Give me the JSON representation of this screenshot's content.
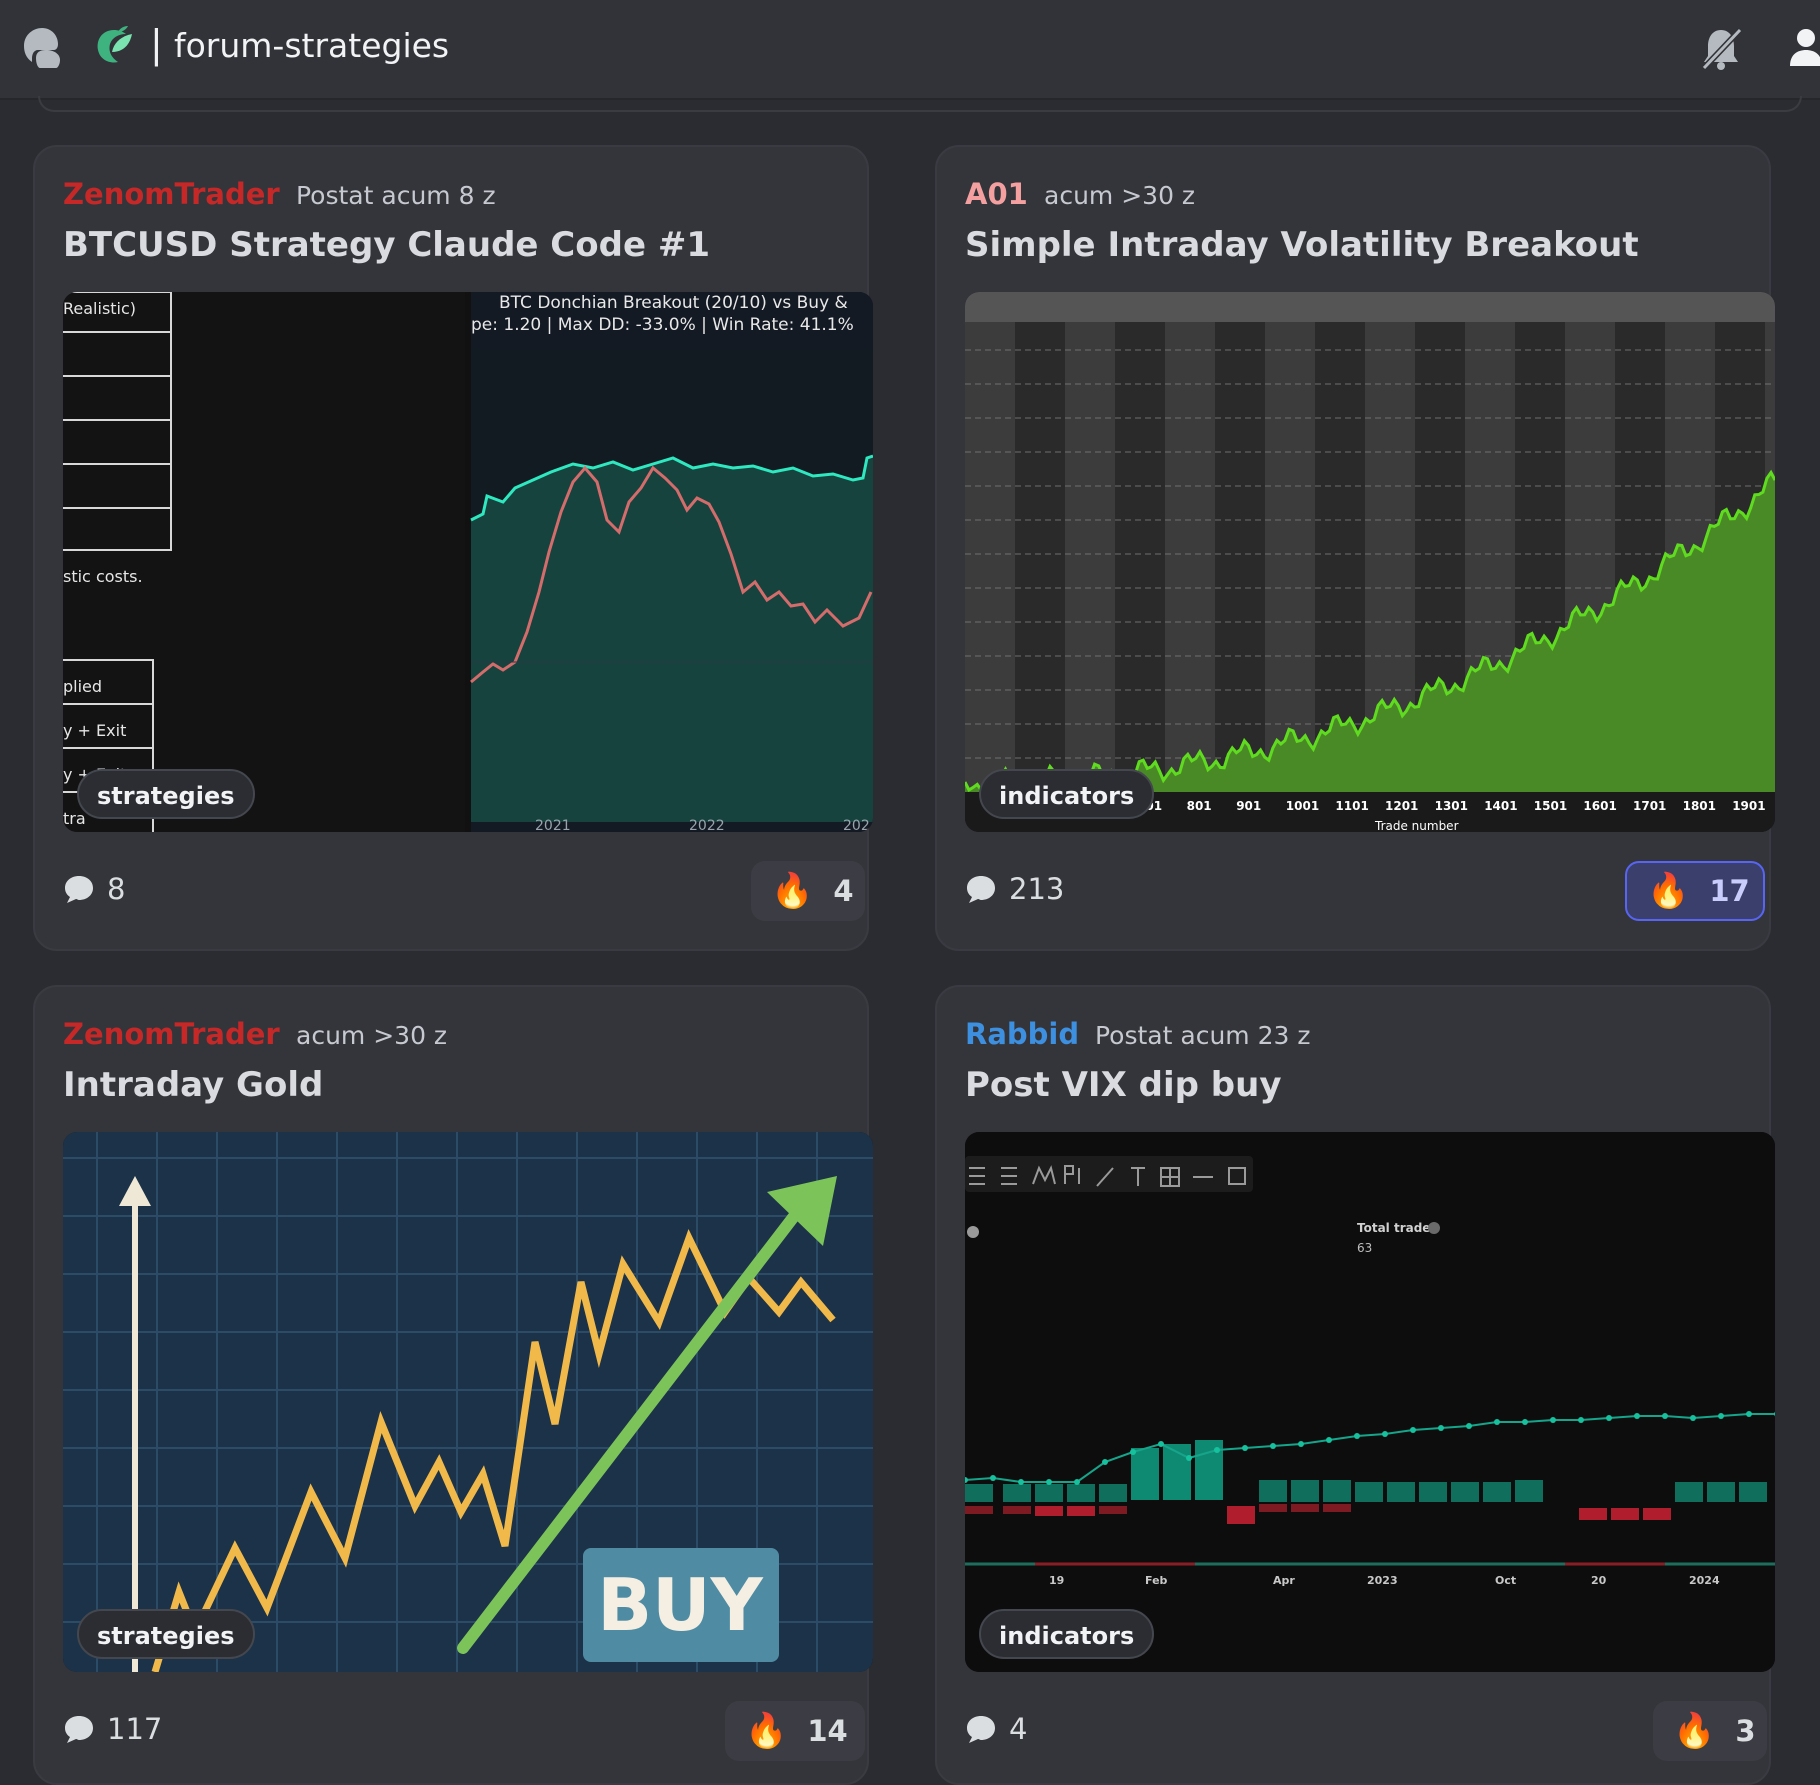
{
  "header": {
    "separator": "|",
    "channel_name": "forum-strategies",
    "icons": [
      "threads-icon",
      "channel-logo-icon",
      "mute-bell-icon",
      "members-icon"
    ]
  },
  "posts": [
    {
      "author": "ZenomTrader",
      "author_color": "#c62828",
      "time": "Postat acum 8 z",
      "title": "BTCUSD Strategy Claude Code #1",
      "tag": "strategies",
      "comments": "8",
      "reaction_emoji": "🔥",
      "reaction_count": "4",
      "reacted": false,
      "image": {
        "left_panel_lines": [
          "Realistic)",
          "stic costs.",
          "plied",
          "y + Exit",
          "y + Exit",
          "tra"
        ],
        "chart_title": "BTC Donchian Breakout (20/10) vs Buy &",
        "chart_subtitle": "pe: 1.20 | Max DD: -33.0% | Win Rate: 41.1%",
        "x_ticks": [
          "2021",
          "2022",
          "202"
        ]
      }
    },
    {
      "author": "A01",
      "author_color": "#f4a0a0",
      "time": "acum >30 z",
      "title": "Simple Intraday Volatility Breakout",
      "tag": "indicators",
      "comments": "213",
      "reaction_emoji": "🔥",
      "reaction_count": "17",
      "reacted": true,
      "image": {
        "x_ticks": [
          "701",
          "801",
          "901",
          "1001",
          "1101",
          "1201",
          "1301",
          "1401",
          "1501",
          "1601",
          "1701",
          "1801",
          "1901"
        ],
        "x_label": "Trade number"
      }
    },
    {
      "author": "ZenomTrader",
      "author_color": "#c62828",
      "time": "acum >30 z",
      "title": "Intraday Gold",
      "tag": "strategies",
      "comments": "117",
      "reaction_emoji": "🔥",
      "reaction_count": "14",
      "reacted": false,
      "image": {
        "badge_text": "BUY"
      }
    },
    {
      "author": "Rabbid",
      "author_color": "#3d8fe0",
      "time": "Postat acum 23 z",
      "title": "Post VIX dip buy",
      "tag": "indicators",
      "comments": "4",
      "reaction_emoji": "🔥",
      "reaction_count": "3",
      "reacted": false,
      "image": {
        "stat_label": "Total trades",
        "stat_value": "63",
        "x_ticks": [
          "19",
          "Feb",
          "Apr",
          "2023",
          "Oct",
          "20",
          "2024"
        ]
      }
    }
  ]
}
